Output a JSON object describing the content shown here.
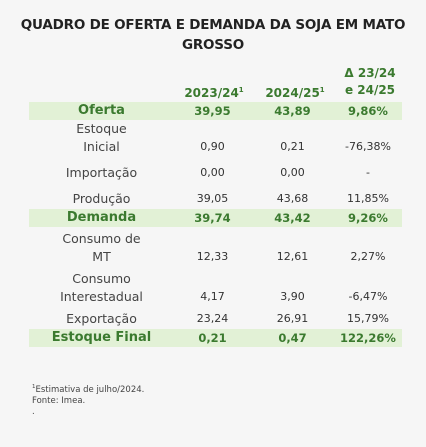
{
  "title": "QUADRO DE OFERTA E DEMANDA DA SOJA EM MATO GROSSO",
  "columns": {
    "c1": "2023/24",
    "c1_sup": "1",
    "c2": "2024/25",
    "c2_sup": "1",
    "c3_line1": "Δ 23/24",
    "c3_line2": "e 24/25"
  },
  "rows": [
    {
      "label": "Oferta",
      "v1": "39,95",
      "v2": "43,89",
      "v3": "9,86%",
      "highlight": true
    },
    {
      "label": "Estoque Inicial",
      "v1": "0,90",
      "v2": "0,21",
      "v3": "-76,38%",
      "highlight": false
    },
    {
      "label": "Importação",
      "v1": "0,00",
      "v2": "0,00",
      "v3": "-",
      "highlight": false
    },
    {
      "label": "Produção",
      "v1": "39,05",
      "v2": "43,68",
      "v3": "11,85%",
      "highlight": false
    },
    {
      "label": "Demanda",
      "v1": "39,74",
      "v2": "43,42",
      "v3": "9,26%",
      "highlight": true
    },
    {
      "label": "Consumo de MT",
      "v1": "12,33",
      "v2": "12,61",
      "v3": "2,27%",
      "highlight": false
    },
    {
      "label": "Consumo Interestadual",
      "v1": "4,17",
      "v2": "3,90",
      "v3": "-6,47%",
      "highlight": false
    },
    {
      "label": "Exportação",
      "v1": "23,24",
      "v2": "26,91",
      "v3": "15,79%",
      "highlight": false
    },
    {
      "label": "Estoque Final",
      "v1": "0,21",
      "v2": "0,47",
      "v3": "122,26%",
      "highlight": true
    }
  ],
  "footnote": {
    "sup": "1",
    "line1": "Estimativa de julho/2024.",
    "line2": "Fonte: Imea.",
    "line3": "."
  }
}
